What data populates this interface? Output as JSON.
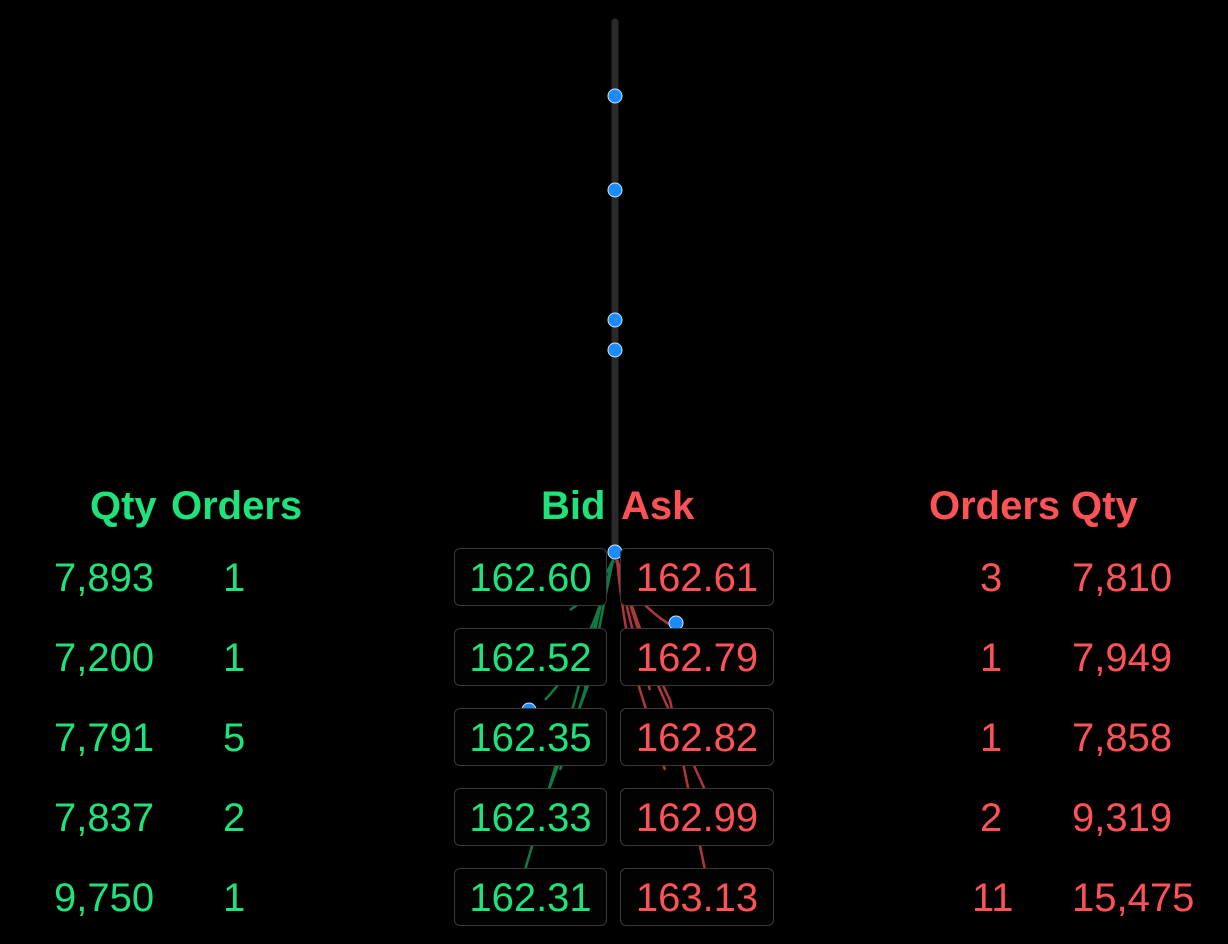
{
  "headers": {
    "bid_qty": "Qty",
    "bid_orders": "Orders",
    "bid": "Bid",
    "ask": "Ask",
    "ask_orders": "Orders",
    "ask_qty": "Qty"
  },
  "rows": [
    {
      "bid_qty": "7,893",
      "bid_orders": "1",
      "bid": "162.60",
      "ask": "162.61",
      "ask_orders": "3",
      "ask_qty": "7,810"
    },
    {
      "bid_qty": "7,200",
      "bid_orders": "1",
      "bid": "162.52",
      "ask": "162.79",
      "ask_orders": "1",
      "ask_qty": "7,949"
    },
    {
      "bid_qty": "7,791",
      "bid_orders": "5",
      "bid": "162.35",
      "ask": "162.82",
      "ask_orders": "1",
      "ask_qty": "7,858"
    },
    {
      "bid_qty": "7,837",
      "bid_orders": "2",
      "bid": "162.33",
      "ask": "162.99",
      "ask_orders": "2",
      "ask_qty": "9,319"
    },
    {
      "bid_qty": "9,750",
      "bid_orders": "1",
      "bid": "162.31",
      "ask": "163.13",
      "ask_orders": "11",
      "ask_qty": "15,475"
    }
  ],
  "colors": {
    "bid": "#1ee37a",
    "ask": "#ff5257",
    "dot": "#1a8cff",
    "track": "#2a2a2a",
    "box_border": "#3a3a3a"
  }
}
